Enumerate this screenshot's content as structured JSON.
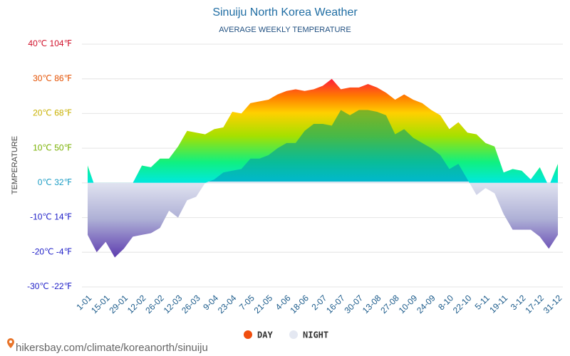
{
  "chart_data": {
    "type": "area",
    "title": "Sinuiju North Korea Weather",
    "subtitle": "AVERAGE WEEKLY TEMPERATURE",
    "y_label": "TEMPERATURE",
    "source": "hikersbay.com/climate/koreanorth/sinuiju",
    "categories": [
      "1-01",
      null,
      "15-01",
      null,
      "29-01",
      null,
      "12-02",
      null,
      "26-02",
      null,
      "12-03",
      null,
      "26-03",
      null,
      "9-04",
      null,
      "23-04",
      null,
      "7-05",
      null,
      "21-05",
      null,
      "4-06",
      null,
      "18-06",
      null,
      "2-07",
      null,
      "16-07",
      null,
      "30-07",
      null,
      "13-08",
      null,
      "27-08",
      null,
      "10-09",
      null,
      "24-09",
      null,
      "8-10",
      null,
      "22-10",
      null,
      "5-11",
      null,
      "19-11",
      null,
      "3-12",
      null,
      "17-12",
      null,
      "31-12"
    ],
    "series": [
      {
        "name": "DAY",
        "color": "#f04e0e",
        "values": [
          5,
          -2.5,
          0,
          -2.5,
          -0.5,
          0,
          5,
          4.5,
          7,
          7,
          10.5,
          15,
          14.5,
          14,
          15.5,
          16,
          20.5,
          20,
          23,
          23.5,
          24,
          25.5,
          26.5,
          27,
          26.5,
          27,
          28,
          30,
          27,
          27.5,
          27.5,
          28.5,
          27.5,
          26,
          24,
          25.5,
          24,
          23,
          21,
          19.5,
          15.5,
          17.5,
          14.5,
          14,
          11.5,
          10.5,
          3,
          4,
          3.5,
          1,
          4.5,
          -1,
          5.5
        ]
      },
      {
        "name": "NIGHT",
        "color": "#e4e8f2",
        "values": [
          -15,
          -20,
          -17,
          -21.5,
          -19,
          -15.5,
          -15,
          -14.5,
          -13,
          -8,
          -10,
          -5,
          -4,
          0,
          1,
          3,
          3.5,
          4,
          7,
          7,
          8,
          10,
          11.5,
          11.5,
          15,
          17,
          17,
          16.5,
          21,
          19.5,
          21,
          21,
          20.5,
          19.5,
          14,
          15.5,
          13,
          11.5,
          10,
          8,
          4,
          5.5,
          1,
          -3.5,
          -1.5,
          -3,
          -9,
          -13.5,
          -13.5,
          -13.5,
          -15.5,
          -19,
          -15
        ]
      }
    ],
    "ylim": [
      -30,
      40
    ],
    "yticks": [
      {
        "value": 40,
        "label": "40℃ 104℉"
      },
      {
        "value": 30,
        "label": "30℃ 86℉"
      },
      {
        "value": 20,
        "label": "20℃ 68℉"
      },
      {
        "value": 10,
        "label": "10℃ 50℉"
      },
      {
        "value": 0,
        "label": "0℃ 32℉"
      },
      {
        "value": -10,
        "label": "-10℃ 14℉"
      },
      {
        "value": -20,
        "label": "-20℃ -4℉"
      },
      {
        "value": -30,
        "label": "-30℃ -22℉"
      }
    ],
    "grid": true
  }
}
